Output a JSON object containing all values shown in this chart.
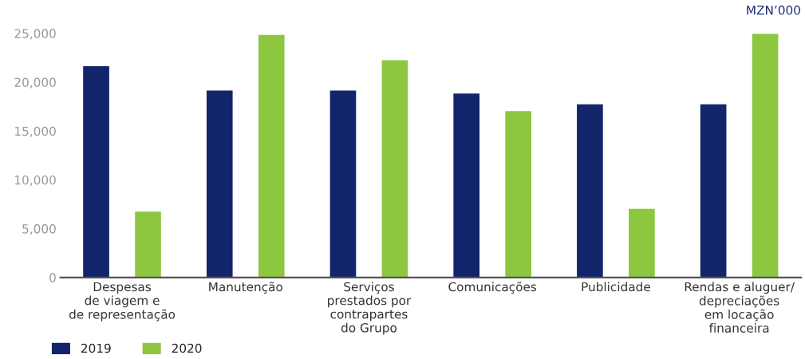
{
  "chart_data": {
    "type": "bar",
    "categories": [
      "Despesas\nde viagem e\nde representação",
      "Manutenção",
      "Serviços\nprestados por\ncontrapartes\ndo Grupo",
      "Comunicações",
      "Publicidade",
      "Rendas e aluguer/\ndepreciações\nem locação\nfinanceira"
    ],
    "series": [
      {
        "name": "2019",
        "color": "#12246a",
        "values": [
          21700,
          19200,
          19200,
          18900,
          17800,
          17800
        ]
      },
      {
        "name": "2020",
        "color": "#8dc63f",
        "values": [
          6800,
          24900,
          22300,
          17100,
          7100,
          25000
        ]
      }
    ],
    "ylim": [
      0,
      25000
    ],
    "yticks": [
      {
        "value": 0,
        "label": "0"
      },
      {
        "value": 5000,
        "label": "5,000"
      },
      {
        "value": 10000,
        "label": "10,000"
      },
      {
        "value": 15000,
        "label": "15,000"
      },
      {
        "value": 20000,
        "label": "20,000"
      },
      {
        "value": 25000,
        "label": "25,000"
      }
    ],
    "annotations": [
      "MZN’000"
    ],
    "legend": "bottom left",
    "grid": false
  }
}
